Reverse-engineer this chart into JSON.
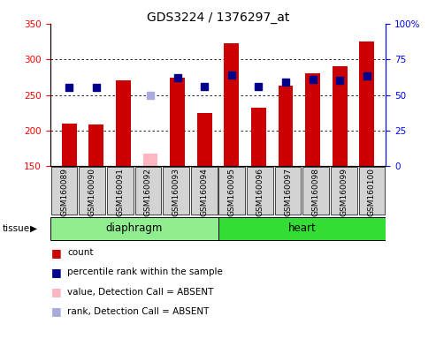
{
  "title": "GDS3224 / 1376297_at",
  "samples": [
    "GSM160089",
    "GSM160090",
    "GSM160091",
    "GSM160092",
    "GSM160093",
    "GSM160094",
    "GSM160095",
    "GSM160096",
    "GSM160097",
    "GSM160098",
    "GSM160099",
    "GSM160100"
  ],
  "count_values": [
    210,
    209,
    270,
    null,
    274,
    224,
    323,
    232,
    263,
    280,
    290,
    325
  ],
  "absent_count_values": [
    null,
    null,
    null,
    167,
    null,
    null,
    null,
    null,
    null,
    null,
    null,
    null
  ],
  "rank_values": [
    260,
    261,
    null,
    null,
    274,
    262,
    278,
    262,
    268,
    272,
    271,
    277
  ],
  "absent_rank_values": [
    null,
    null,
    null,
    249,
    null,
    null,
    null,
    null,
    null,
    null,
    null,
    null
  ],
  "ylim": [
    150,
    350
  ],
  "yticks_left": [
    150,
    200,
    250,
    300,
    350
  ],
  "gridlines": [
    200,
    250,
    300
  ],
  "bar_bottom": 150,
  "bar_color": "#cc0000",
  "absent_bar_color": "#ffb6c1",
  "rank_color": "#00008b",
  "absent_rank_color": "#aaaadd",
  "diaphragm_color": "#90ee90",
  "heart_color": "#33dd33",
  "sample_box_color": "#d3d3d3",
  "legend_items": [
    {
      "label": "count",
      "color": "#cc0000"
    },
    {
      "label": "percentile rank within the sample",
      "color": "#00008b"
    },
    {
      "label": "value, Detection Call = ABSENT",
      "color": "#ffb6c1"
    },
    {
      "label": "rank, Detection Call = ABSENT",
      "color": "#aaaadd"
    }
  ],
  "bar_width": 0.55,
  "rank_marker_size": 6,
  "title_fontsize": 10,
  "tick_fontsize": 7.5,
  "sample_fontsize": 6.5,
  "tissue_fontsize": 8.5,
  "legend_fontsize": 7.5
}
